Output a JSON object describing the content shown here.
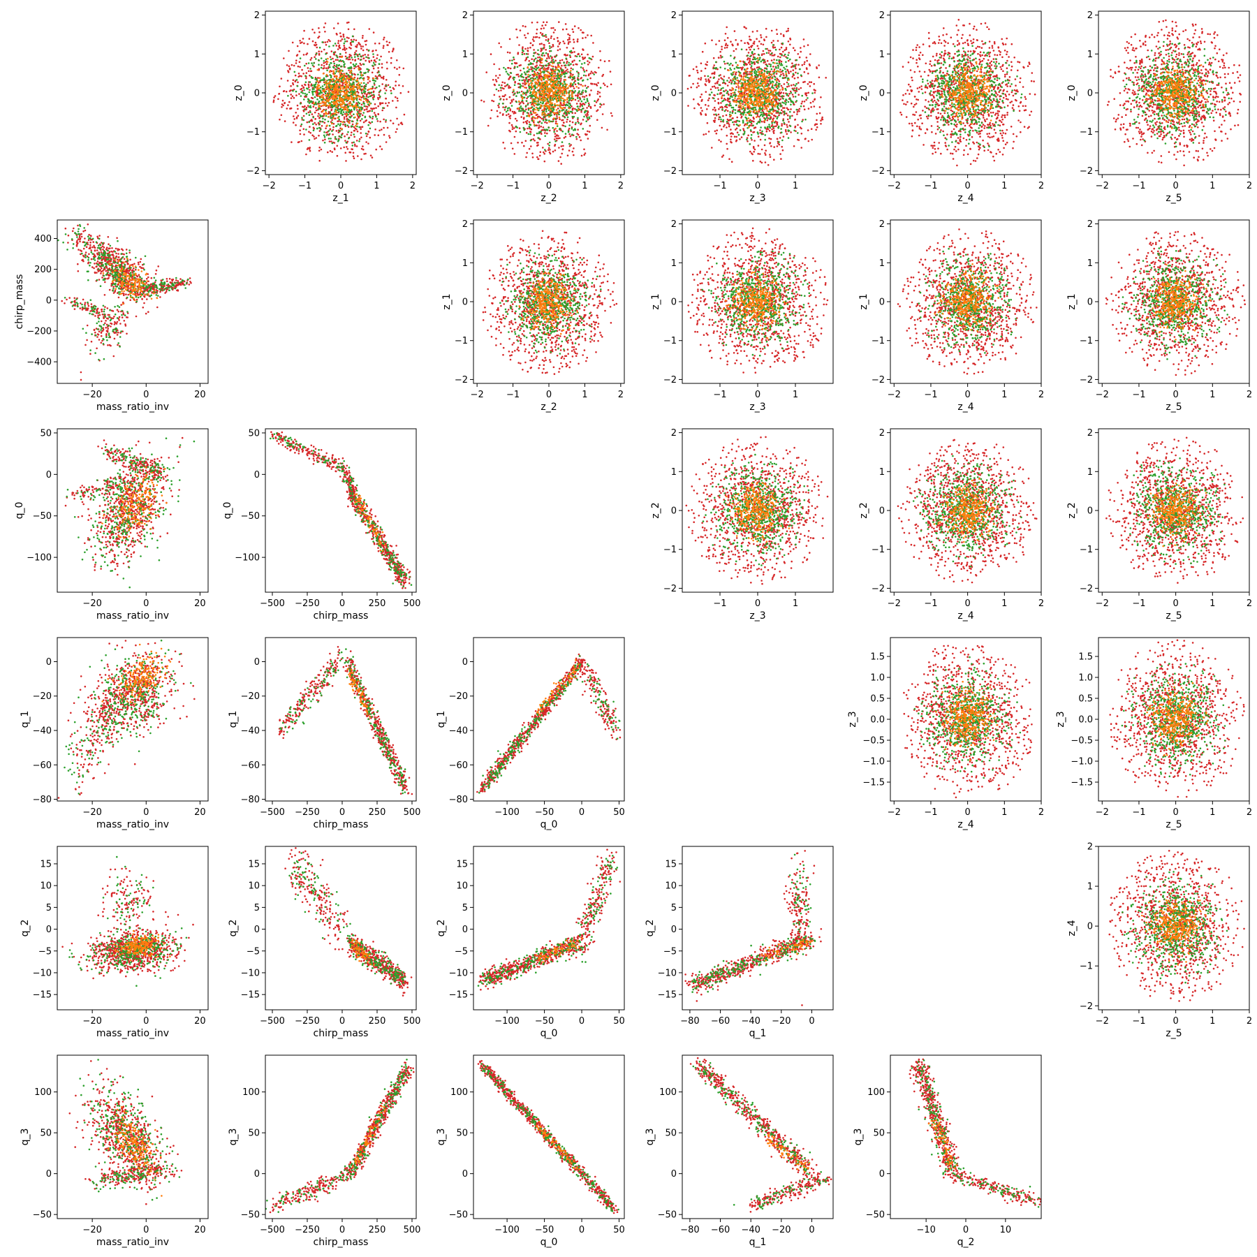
{
  "figure": {
    "type": "pairwise scatter grid (corner plot)",
    "rows": 6,
    "cols": 6
  },
  "colors": {
    "red": "#d62728",
    "green": "#2ca02c",
    "orange": "#ff7f0e",
    "axes": "#000000"
  },
  "chart_data": [
    {
      "type": "scatter",
      "row": 0,
      "col": 1,
      "xlabel": "z_1",
      "ylabel": "z_0",
      "xlim": [
        -2.1,
        2.1
      ],
      "ylim": [
        -2.1,
        2.1
      ],
      "xticks": [
        -2,
        -1,
        0,
        1,
        2
      ],
      "yticks": [
        -2,
        -1,
        0,
        1,
        2
      ],
      "pattern": "gaussian",
      "params": {
        "mx": 0,
        "my": 0,
        "sx": 0.7,
        "sy": 0.7,
        "r": 0
      }
    },
    {
      "type": "scatter",
      "row": 0,
      "col": 2,
      "xlabel": "z_2",
      "ylabel": "z_0",
      "xlim": [
        -2.1,
        2.1
      ],
      "ylim": [
        -2.1,
        2.1
      ],
      "xticks": [
        -2,
        -1,
        0,
        1,
        2
      ],
      "yticks": [
        -2,
        -1,
        0,
        1,
        2
      ],
      "pattern": "gaussian",
      "params": {
        "mx": 0,
        "my": 0,
        "sx": 0.7,
        "sy": 0.7,
        "r": 0
      }
    },
    {
      "type": "scatter",
      "row": 0,
      "col": 3,
      "xlabel": "z_3",
      "ylabel": "z_0",
      "xlim": [
        -2.0,
        2.0
      ],
      "ylim": [
        -2.1,
        2.1
      ],
      "xticks": [
        -1,
        0,
        1
      ],
      "yticks": [
        -2,
        -1,
        0,
        1,
        2
      ],
      "pattern": "gaussian",
      "params": {
        "mx": 0,
        "my": 0,
        "sx": 0.7,
        "sy": 0.7,
        "r": 0
      }
    },
    {
      "type": "scatter",
      "row": 0,
      "col": 4,
      "xlabel": "z_4",
      "ylabel": "z_0",
      "xlim": [
        -2.1,
        2.0
      ],
      "ylim": [
        -2.1,
        2.1
      ],
      "xticks": [
        -2,
        -1,
        0,
        1,
        2
      ],
      "yticks": [
        -2,
        -1,
        0,
        1,
        2
      ],
      "pattern": "gaussian",
      "params": {
        "mx": 0,
        "my": 0,
        "sx": 0.7,
        "sy": 0.7,
        "r": 0
      }
    },
    {
      "type": "scatter",
      "row": 0,
      "col": 5,
      "xlabel": "z_5",
      "ylabel": "z_0",
      "xlim": [
        -2.1,
        2.0
      ],
      "ylim": [
        -2.1,
        2.1
      ],
      "xticks": [
        -2,
        -1,
        0,
        1,
        2
      ],
      "yticks": [
        -2,
        -1,
        0,
        1,
        2
      ],
      "pattern": "gaussian",
      "params": {
        "mx": 0,
        "my": 0,
        "sx": 0.7,
        "sy": 0.7,
        "r": 0
      }
    },
    {
      "type": "scatter",
      "row": 1,
      "col": 0,
      "xlabel": "mass_ratio_inv",
      "ylabel": "chirp_mass",
      "xlim": [
        -33,
        23
      ],
      "ylim": [
        -540,
        520
      ],
      "xticks": [
        -20,
        0,
        20
      ],
      "yticks": [
        -400,
        -200,
        0,
        200,
        400
      ],
      "pattern": "mr_chirp"
    },
    {
      "type": "scatter",
      "row": 1,
      "col": 2,
      "xlabel": "z_2",
      "ylabel": "z_1",
      "xlim": [
        -2.1,
        2.1
      ],
      "ylim": [
        -2.1,
        2.1
      ],
      "xticks": [
        -2,
        -1,
        0,
        1,
        2
      ],
      "yticks": [
        -2,
        -1,
        0,
        1,
        2
      ],
      "pattern": "gaussian",
      "params": {
        "mx": 0,
        "my": 0,
        "sx": 0.7,
        "sy": 0.7,
        "r": 0
      }
    },
    {
      "type": "scatter",
      "row": 1,
      "col": 3,
      "xlabel": "z_3",
      "ylabel": "z_1",
      "xlim": [
        -2.0,
        2.0
      ],
      "ylim": [
        -2.1,
        2.1
      ],
      "xticks": [
        -1,
        0,
        1
      ],
      "yticks": [
        -2,
        -1,
        0,
        1,
        2
      ],
      "pattern": "gaussian",
      "params": {
        "mx": 0,
        "my": 0,
        "sx": 0.7,
        "sy": 0.7,
        "r": 0
      }
    },
    {
      "type": "scatter",
      "row": 1,
      "col": 4,
      "xlabel": "z_4",
      "ylabel": "z_1",
      "xlim": [
        -2.1,
        2.0
      ],
      "ylim": [
        -2.1,
        2.1
      ],
      "xticks": [
        -2,
        -1,
        0,
        1,
        2
      ],
      "yticks": [
        -2,
        -1,
        0,
        1,
        2
      ],
      "pattern": "gaussian",
      "params": {
        "mx": 0,
        "my": 0,
        "sx": 0.7,
        "sy": 0.7,
        "r": 0
      }
    },
    {
      "type": "scatter",
      "row": 1,
      "col": 5,
      "xlabel": "z_5",
      "ylabel": "z_1",
      "xlim": [
        -2.1,
        2.0
      ],
      "ylim": [
        -2.1,
        2.1
      ],
      "xticks": [
        -2,
        -1,
        0,
        1,
        2
      ],
      "yticks": [
        -2,
        -1,
        0,
        1,
        2
      ],
      "pattern": "gaussian",
      "params": {
        "mx": 0,
        "my": 0,
        "sx": 0.7,
        "sy": 0.7,
        "r": 0
      }
    },
    {
      "type": "scatter",
      "row": 2,
      "col": 0,
      "xlabel": "mass_ratio_inv",
      "ylabel": "q_0",
      "xlim": [
        -33,
        23
      ],
      "ylim": [
        -142,
        55
      ],
      "xticks": [
        -20,
        0,
        20
      ],
      "yticks": [
        -100,
        -50,
        0,
        50
      ],
      "pattern": "mr_q0"
    },
    {
      "type": "scatter",
      "row": 2,
      "col": 1,
      "xlabel": "chirp_mass",
      "ylabel": "q_0",
      "xlim": [
        -550,
        530
      ],
      "ylim": [
        -142,
        55
      ],
      "xticks": [
        -500,
        -250,
        0,
        250,
        500
      ],
      "yticks": [
        -100,
        -50,
        0,
        50
      ],
      "pattern": "chirp_q0"
    },
    {
      "type": "scatter",
      "row": 2,
      "col": 3,
      "xlabel": "z_3",
      "ylabel": "z_2",
      "xlim": [
        -2.0,
        2.0
      ],
      "ylim": [
        -2.1,
        2.1
      ],
      "xticks": [
        -1,
        0,
        1
      ],
      "yticks": [
        -2,
        -1,
        0,
        1,
        2
      ],
      "pattern": "gaussian",
      "params": {
        "mx": 0,
        "my": 0,
        "sx": 0.7,
        "sy": 0.7,
        "r": 0
      }
    },
    {
      "type": "scatter",
      "row": 2,
      "col": 4,
      "xlabel": "z_4",
      "ylabel": "z_2",
      "xlim": [
        -2.1,
        2.0
      ],
      "ylim": [
        -2.1,
        2.1
      ],
      "xticks": [
        -2,
        -1,
        0,
        1,
        2
      ],
      "yticks": [
        -2,
        -1,
        0,
        1,
        2
      ],
      "pattern": "gaussian",
      "params": {
        "mx": 0,
        "my": 0,
        "sx": 0.7,
        "sy": 0.7,
        "r": 0
      }
    },
    {
      "type": "scatter",
      "row": 2,
      "col": 5,
      "xlabel": "z_5",
      "ylabel": "z_2",
      "xlim": [
        -2.1,
        2.0
      ],
      "ylim": [
        -2.1,
        2.1
      ],
      "xticks": [
        -2,
        -1,
        0,
        1,
        2
      ],
      "yticks": [
        -2,
        -1,
        0,
        1,
        2
      ],
      "pattern": "gaussian",
      "params": {
        "mx": 0,
        "my": 0,
        "sx": 0.7,
        "sy": 0.7,
        "r": 0
      }
    },
    {
      "type": "scatter",
      "row": 3,
      "col": 0,
      "xlabel": "mass_ratio_inv",
      "ylabel": "q_1",
      "xlim": [
        -33,
        23
      ],
      "ylim": [
        -81,
        14
      ],
      "xticks": [
        -20,
        0,
        20
      ],
      "yticks": [
        -80,
        -60,
        -40,
        -20,
        0
      ],
      "pattern": "mr_q1"
    },
    {
      "type": "scatter",
      "row": 3,
      "col": 1,
      "xlabel": "chirp_mass",
      "ylabel": "q_1",
      "xlim": [
        -550,
        530
      ],
      "ylim": [
        -81,
        14
      ],
      "xticks": [
        -500,
        -250,
        0,
        250,
        500
      ],
      "yticks": [
        -80,
        -60,
        -40,
        -20,
        0
      ],
      "pattern": "chirp_q1"
    },
    {
      "type": "scatter",
      "row": 3,
      "col": 2,
      "xlabel": "q_0",
      "ylabel": "q_1",
      "xlim": [
        -145,
        57
      ],
      "ylim": [
        -81,
        14
      ],
      "xticks": [
        -100,
        -50,
        0,
        50
      ],
      "yticks": [
        -80,
        -60,
        -40,
        -20,
        0
      ],
      "pattern": "q0_q1"
    },
    {
      "type": "scatter",
      "row": 3,
      "col": 4,
      "xlabel": "z_4",
      "ylabel": "z_3",
      "xlim": [
        -2.1,
        2.0
      ],
      "ylim": [
        -1.95,
        1.95
      ],
      "xticks": [
        -2,
        -1,
        0,
        1,
        2
      ],
      "yticks": [
        -1.5,
        -1.0,
        -0.5,
        0.0,
        0.5,
        1.0,
        1.5
      ],
      "pattern": "gaussian",
      "params": {
        "mx": 0,
        "my": 0,
        "sx": 0.7,
        "sy": 0.65,
        "r": 0
      }
    },
    {
      "type": "scatter",
      "row": 3,
      "col": 5,
      "xlabel": "z_5",
      "ylabel": "z_3",
      "xlim": [
        -2.1,
        2.0
      ],
      "ylim": [
        -1.95,
        1.95
      ],
      "xticks": [
        -2,
        -1,
        0,
        1,
        2
      ],
      "yticks": [
        -1.5,
        -1.0,
        -0.5,
        0.0,
        0.5,
        1.0,
        1.5
      ],
      "pattern": "gaussian",
      "params": {
        "mx": 0,
        "my": 0,
        "sx": 0.7,
        "sy": 0.65,
        "r": 0
      }
    },
    {
      "type": "scatter",
      "row": 4,
      "col": 0,
      "xlabel": "mass_ratio_inv",
      "ylabel": "q_2",
      "xlim": [
        -33,
        23
      ],
      "ylim": [
        -18.5,
        19
      ],
      "xticks": [
        -20,
        0,
        20
      ],
      "yticks": [
        -15,
        -10,
        -5,
        0,
        5,
        10,
        15
      ],
      "pattern": "mr_q2"
    },
    {
      "type": "scatter",
      "row": 4,
      "col": 1,
      "xlabel": "chirp_mass",
      "ylabel": "q_2",
      "xlim": [
        -550,
        530
      ],
      "ylim": [
        -18.5,
        19
      ],
      "xticks": [
        -500,
        -250,
        0,
        250,
        500
      ],
      "yticks": [
        -15,
        -10,
        -5,
        0,
        5,
        10,
        15
      ],
      "pattern": "chirp_q2"
    },
    {
      "type": "scatter",
      "row": 4,
      "col": 2,
      "xlabel": "q_0",
      "ylabel": "q_2",
      "xlim": [
        -145,
        57
      ],
      "ylim": [
        -18.5,
        19
      ],
      "xticks": [
        -100,
        -50,
        0,
        50
      ],
      "yticks": [
        -15,
        -10,
        -5,
        0,
        5,
        10,
        15
      ],
      "pattern": "q0_q2"
    },
    {
      "type": "scatter",
      "row": 4,
      "col": 3,
      "xlabel": "q_1",
      "ylabel": "q_2",
      "xlim": [
        -85,
        14
      ],
      "ylim": [
        -18.5,
        19
      ],
      "xticks": [
        -80,
        -60,
        -40,
        -20,
        0
      ],
      "yticks": [
        -15,
        -10,
        -5,
        0,
        5,
        10,
        15
      ],
      "pattern": "q1_q2"
    },
    {
      "type": "scatter",
      "row": 4,
      "col": 5,
      "xlabel": "z_5",
      "ylabel": "z_4",
      "xlim": [
        -2.1,
        2.0
      ],
      "ylim": [
        -2.1,
        2.0
      ],
      "xticks": [
        -2,
        -1,
        0,
        1,
        2
      ],
      "yticks": [
        -2,
        -1,
        0,
        1,
        2
      ],
      "pattern": "gaussian",
      "params": {
        "mx": 0,
        "my": 0,
        "sx": 0.7,
        "sy": 0.7,
        "r": 0
      }
    },
    {
      "type": "scatter",
      "row": 5,
      "col": 0,
      "xlabel": "mass_ratio_inv",
      "ylabel": "q_3",
      "xlim": [
        -33,
        23
      ],
      "ylim": [
        -55,
        145
      ],
      "xticks": [
        -20,
        0,
        20
      ],
      "yticks": [
        -50,
        0,
        50,
        100
      ],
      "pattern": "mr_q3"
    },
    {
      "type": "scatter",
      "row": 5,
      "col": 1,
      "xlabel": "chirp_mass",
      "ylabel": "q_3",
      "xlim": [
        -550,
        530
      ],
      "ylim": [
        -55,
        145
      ],
      "xticks": [
        -500,
        -250,
        0,
        250,
        500
      ],
      "yticks": [
        -50,
        0,
        50,
        100
      ],
      "pattern": "chirp_q3"
    },
    {
      "type": "scatter",
      "row": 5,
      "col": 2,
      "xlabel": "q_0",
      "ylabel": "q_3",
      "xlim": [
        -145,
        57
      ],
      "ylim": [
        -55,
        145
      ],
      "xticks": [
        -100,
        -50,
        0,
        50
      ],
      "yticks": [
        -50,
        0,
        50,
        100
      ],
      "pattern": "q0_q3"
    },
    {
      "type": "scatter",
      "row": 5,
      "col": 3,
      "xlabel": "q_1",
      "ylabel": "q_3",
      "xlim": [
        -85,
        14
      ],
      "ylim": [
        -55,
        145
      ],
      "xticks": [
        -80,
        -60,
        -40,
        -20,
        0
      ],
      "yticks": [
        -50,
        0,
        50,
        100
      ],
      "pattern": "q1_q3"
    },
    {
      "type": "scatter",
      "row": 5,
      "col": 4,
      "xlabel": "q_2",
      "ylabel": "q_3",
      "xlim": [
        -19,
        19
      ],
      "ylim": [
        -55,
        145
      ],
      "xticks": [
        -10,
        0,
        10
      ],
      "yticks": [
        -50,
        0,
        50,
        100
      ],
      "pattern": "q2_q3"
    }
  ]
}
